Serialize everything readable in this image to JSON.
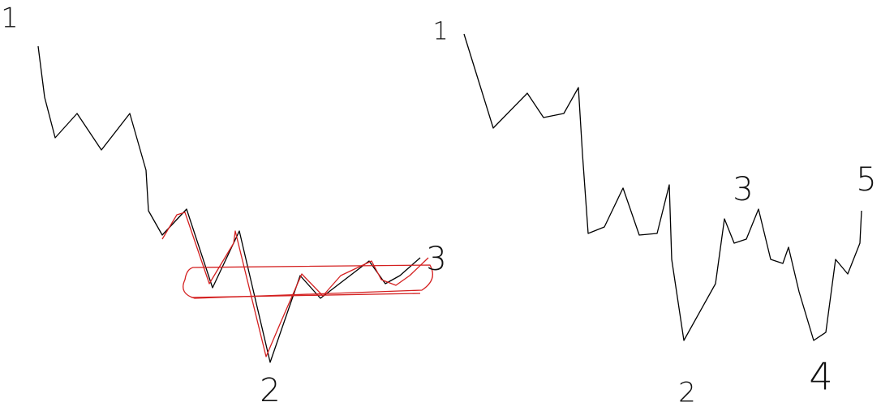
{
  "left_sketch": {
    "labels": [
      "1",
      "2",
      "3"
    ]
  },
  "right_sketch": {
    "labels": [
      "1",
      "2",
      "3",
      "4",
      "5"
    ]
  }
}
